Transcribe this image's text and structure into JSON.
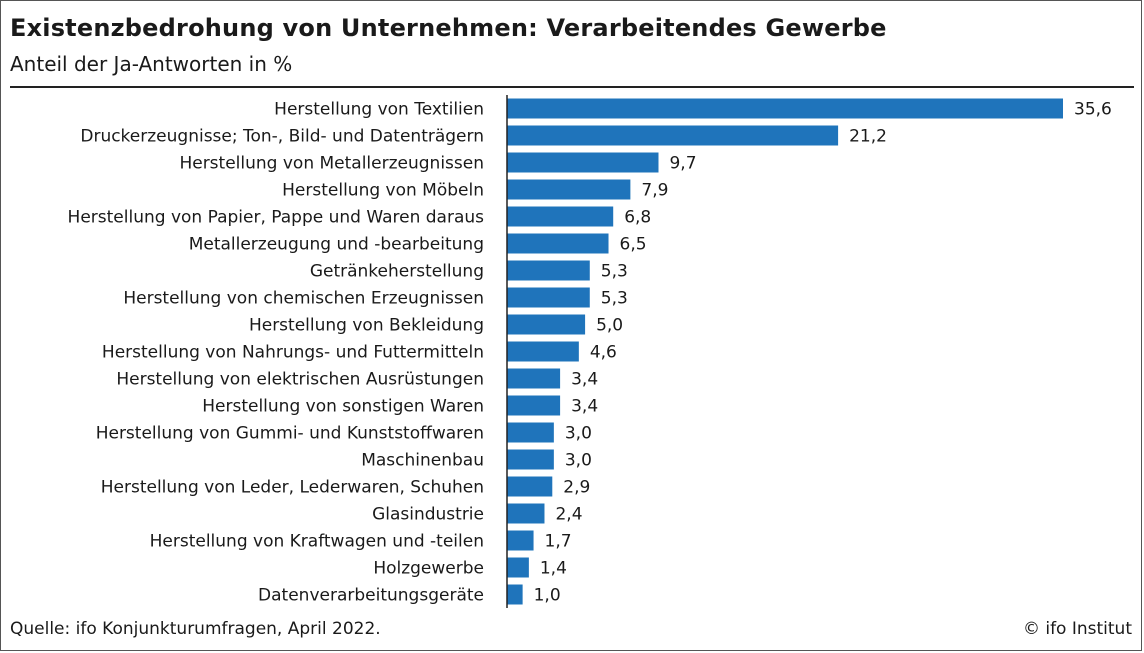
{
  "chart_data": {
    "type": "bar",
    "orientation": "horizontal",
    "title": "Existenzbedrohung von Unternehmen: Verarbeitendes Gewerbe",
    "subtitle": "Anteil der Ja-Antworten in %",
    "categories": [
      "Herstellung von Textilien",
      "Druckerzeugnisse; Ton-, Bild- und Datenträgern",
      "Herstellung von Metallerzeugnissen",
      "Herstellung von Möbeln",
      "Herstellung von Papier, Pappe und Waren daraus",
      "Metallerzeugung und -bearbeitung",
      "Getränkeherstellung",
      "Herstellung von chemischen Erzeugnissen",
      "Herstellung von Bekleidung",
      "Herstellung von Nahrungs- und Futtermitteln",
      "Herstellung von elektrischen Ausrüstungen",
      "Herstellung von sonstigen Waren",
      "Herstellung von Gummi- und Kunststoffwaren",
      "Maschinenbau",
      "Herstellung von Leder, Lederwaren, Schuhen",
      "Glasindustrie",
      "Herstellung von Kraftwagen und -teilen",
      "Holzgewerbe",
      "Datenverarbeitungsgeräte"
    ],
    "values": [
      35.6,
      21.2,
      9.7,
      7.9,
      6.8,
      6.5,
      5.3,
      5.3,
      5.0,
      4.6,
      3.4,
      3.4,
      3.0,
      3.0,
      2.9,
      2.4,
      1.7,
      1.4,
      1.0
    ],
    "value_labels": [
      "35,6",
      "21,2",
      "9,7",
      "7,9",
      "6,8",
      "6,5",
      "5,3",
      "5,3",
      "5,0",
      "4,6",
      "3,4",
      "3,4",
      "3,0",
      "3,0",
      "2,9",
      "2,4",
      "1,7",
      "1,4",
      "1,0"
    ],
    "xlim": [
      0,
      35.6
    ],
    "grid": false,
    "legend": "none",
    "bar_color": "#1f74bb"
  },
  "footer": {
    "source": "Quelle: ifo Konjunkturumfragen, April 2022.",
    "copyright": "© ifo Institut"
  }
}
